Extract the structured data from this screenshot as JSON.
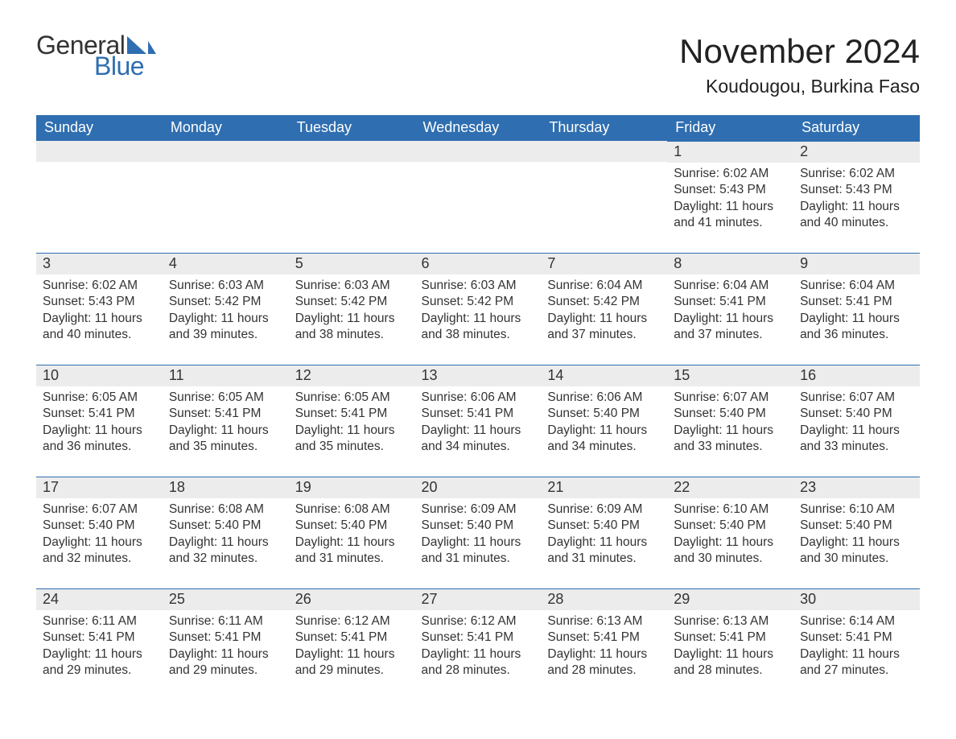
{
  "logo": {
    "text_general": "General",
    "text_blue": "Blue",
    "flag_color": "#2f6eb0"
  },
  "title": "November 2024",
  "location": "Koudougou, Burkina Faso",
  "colors": {
    "header_bg": "#2f6eb0",
    "header_text": "#ffffff",
    "daybar_bg": "#ececec",
    "daybar_border": "#2f6eb0",
    "body_text": "#333333",
    "page_bg": "#ffffff"
  },
  "fonts": {
    "title_size_pt": 32,
    "location_size_pt": 17,
    "header_size_pt": 13,
    "cell_size_pt": 12,
    "family": "Arial"
  },
  "weekdays": [
    "Sunday",
    "Monday",
    "Tuesday",
    "Wednesday",
    "Thursday",
    "Friday",
    "Saturday"
  ],
  "labels": {
    "sunrise": "Sunrise:",
    "sunset": "Sunset:",
    "daylight": "Daylight:"
  },
  "weeks": [
    [
      null,
      null,
      null,
      null,
      null,
      {
        "n": "1",
        "sunrise": "6:02 AM",
        "sunset": "5:43 PM",
        "daylight": "11 hours and 41 minutes."
      },
      {
        "n": "2",
        "sunrise": "6:02 AM",
        "sunset": "5:43 PM",
        "daylight": "11 hours and 40 minutes."
      }
    ],
    [
      {
        "n": "3",
        "sunrise": "6:02 AM",
        "sunset": "5:43 PM",
        "daylight": "11 hours and 40 minutes."
      },
      {
        "n": "4",
        "sunrise": "6:03 AM",
        "sunset": "5:42 PM",
        "daylight": "11 hours and 39 minutes."
      },
      {
        "n": "5",
        "sunrise": "6:03 AM",
        "sunset": "5:42 PM",
        "daylight": "11 hours and 38 minutes."
      },
      {
        "n": "6",
        "sunrise": "6:03 AM",
        "sunset": "5:42 PM",
        "daylight": "11 hours and 38 minutes."
      },
      {
        "n": "7",
        "sunrise": "6:04 AM",
        "sunset": "5:42 PM",
        "daylight": "11 hours and 37 minutes."
      },
      {
        "n": "8",
        "sunrise": "6:04 AM",
        "sunset": "5:41 PM",
        "daylight": "11 hours and 37 minutes."
      },
      {
        "n": "9",
        "sunrise": "6:04 AM",
        "sunset": "5:41 PM",
        "daylight": "11 hours and 36 minutes."
      }
    ],
    [
      {
        "n": "10",
        "sunrise": "6:05 AM",
        "sunset": "5:41 PM",
        "daylight": "11 hours and 36 minutes."
      },
      {
        "n": "11",
        "sunrise": "6:05 AM",
        "sunset": "5:41 PM",
        "daylight": "11 hours and 35 minutes."
      },
      {
        "n": "12",
        "sunrise": "6:05 AM",
        "sunset": "5:41 PM",
        "daylight": "11 hours and 35 minutes."
      },
      {
        "n": "13",
        "sunrise": "6:06 AM",
        "sunset": "5:41 PM",
        "daylight": "11 hours and 34 minutes."
      },
      {
        "n": "14",
        "sunrise": "6:06 AM",
        "sunset": "5:40 PM",
        "daylight": "11 hours and 34 minutes."
      },
      {
        "n": "15",
        "sunrise": "6:07 AM",
        "sunset": "5:40 PM",
        "daylight": "11 hours and 33 minutes."
      },
      {
        "n": "16",
        "sunrise": "6:07 AM",
        "sunset": "5:40 PM",
        "daylight": "11 hours and 33 minutes."
      }
    ],
    [
      {
        "n": "17",
        "sunrise": "6:07 AM",
        "sunset": "5:40 PM",
        "daylight": "11 hours and 32 minutes."
      },
      {
        "n": "18",
        "sunrise": "6:08 AM",
        "sunset": "5:40 PM",
        "daylight": "11 hours and 32 minutes."
      },
      {
        "n": "19",
        "sunrise": "6:08 AM",
        "sunset": "5:40 PM",
        "daylight": "11 hours and 31 minutes."
      },
      {
        "n": "20",
        "sunrise": "6:09 AM",
        "sunset": "5:40 PM",
        "daylight": "11 hours and 31 minutes."
      },
      {
        "n": "21",
        "sunrise": "6:09 AM",
        "sunset": "5:40 PM",
        "daylight": "11 hours and 31 minutes."
      },
      {
        "n": "22",
        "sunrise": "6:10 AM",
        "sunset": "5:40 PM",
        "daylight": "11 hours and 30 minutes."
      },
      {
        "n": "23",
        "sunrise": "6:10 AM",
        "sunset": "5:40 PM",
        "daylight": "11 hours and 30 minutes."
      }
    ],
    [
      {
        "n": "24",
        "sunrise": "6:11 AM",
        "sunset": "5:41 PM",
        "daylight": "11 hours and 29 minutes."
      },
      {
        "n": "25",
        "sunrise": "6:11 AM",
        "sunset": "5:41 PM",
        "daylight": "11 hours and 29 minutes."
      },
      {
        "n": "26",
        "sunrise": "6:12 AM",
        "sunset": "5:41 PM",
        "daylight": "11 hours and 29 minutes."
      },
      {
        "n": "27",
        "sunrise": "6:12 AM",
        "sunset": "5:41 PM",
        "daylight": "11 hours and 28 minutes."
      },
      {
        "n": "28",
        "sunrise": "6:13 AM",
        "sunset": "5:41 PM",
        "daylight": "11 hours and 28 minutes."
      },
      {
        "n": "29",
        "sunrise": "6:13 AM",
        "sunset": "5:41 PM",
        "daylight": "11 hours and 28 minutes."
      },
      {
        "n": "30",
        "sunrise": "6:14 AM",
        "sunset": "5:41 PM",
        "daylight": "11 hours and 27 minutes."
      }
    ]
  ]
}
